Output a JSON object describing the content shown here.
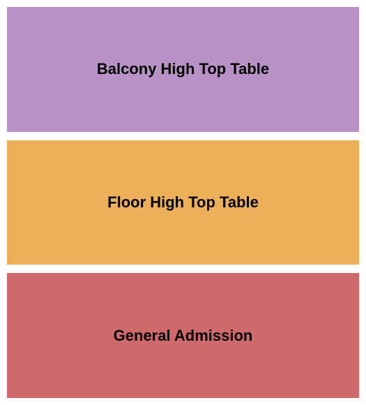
{
  "seating_chart": {
    "type": "infographic",
    "background_color": "#ffffff",
    "gap": 12,
    "padding": 10,
    "sections": [
      {
        "label": "Balcony High Top Table",
        "background_color": "#b891c7",
        "text_color": "#000000",
        "font_size": 22,
        "font_weight": "bold"
      },
      {
        "label": "Floor High Top Table",
        "background_color": "#eeaf5a",
        "text_color": "#000000",
        "font_size": 22,
        "font_weight": "bold"
      },
      {
        "label": "General Admission",
        "background_color": "#d06a6a",
        "text_color": "#000000",
        "font_size": 22,
        "font_weight": "bold"
      }
    ]
  }
}
